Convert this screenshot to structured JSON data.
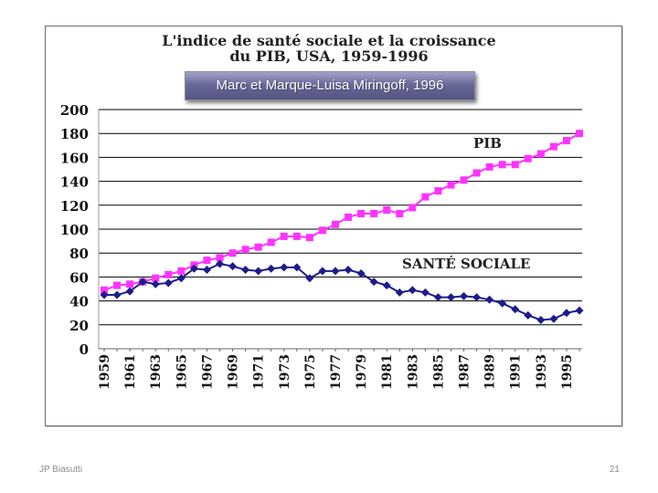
{
  "slide": {
    "footer_left": "JP Biasutti",
    "page_number": "21"
  },
  "chart_data": {
    "type": "line",
    "title_line1": "L'indice de santé sociale et la croissance",
    "title_line2": "du PIB, USA, 1959-1996",
    "caption": "Marc et Marque-Luisa Miringoff, 1996",
    "x": [
      1959,
      1960,
      1961,
      1962,
      1963,
      1964,
      1965,
      1966,
      1967,
      1968,
      1969,
      1970,
      1971,
      1972,
      1973,
      1974,
      1975,
      1976,
      1977,
      1978,
      1979,
      1980,
      1981,
      1982,
      1983,
      1984,
      1985,
      1986,
      1987,
      1988,
      1989,
      1990,
      1991,
      1992,
      1993,
      1994,
      1995,
      1996
    ],
    "x_tick_labels": [
      "1959",
      "1961",
      "1963",
      "1965",
      "1967",
      "1969",
      "1971",
      "1973",
      "1975",
      "1977",
      "1979",
      "1981",
      "1983",
      "1985",
      "1987",
      "1989",
      "1991",
      "1993",
      "1995"
    ],
    "ylim": [
      0,
      200
    ],
    "y_ticks": [
      0,
      20,
      40,
      60,
      80,
      100,
      120,
      140,
      160,
      180,
      200
    ],
    "grid": "horizontal",
    "series": [
      {
        "name": "PIB",
        "color": "#ff33ff",
        "marker": "square",
        "values": [
          49,
          53,
          54,
          56,
          59,
          62,
          65,
          70,
          74,
          76,
          80,
          83,
          85,
          89,
          94,
          94,
          93,
          99,
          104,
          110,
          113,
          113,
          116,
          113,
          118,
          127,
          132,
          137,
          141,
          147,
          152,
          154,
          154,
          159,
          163,
          169,
          174,
          180
        ]
      },
      {
        "name": "SANTÉ SOCIALE",
        "color": "#1c1c8c",
        "marker": "diamond",
        "values": [
          45,
          45,
          48,
          56,
          54,
          55,
          59,
          67,
          66,
          71,
          69,
          66,
          65,
          67,
          68,
          68,
          59,
          65,
          65,
          66,
          63,
          56,
          53,
          47,
          49,
          47,
          43,
          43,
          44,
          43,
          41,
          38,
          33,
          28,
          24,
          25,
          30,
          32
        ]
      }
    ]
  }
}
